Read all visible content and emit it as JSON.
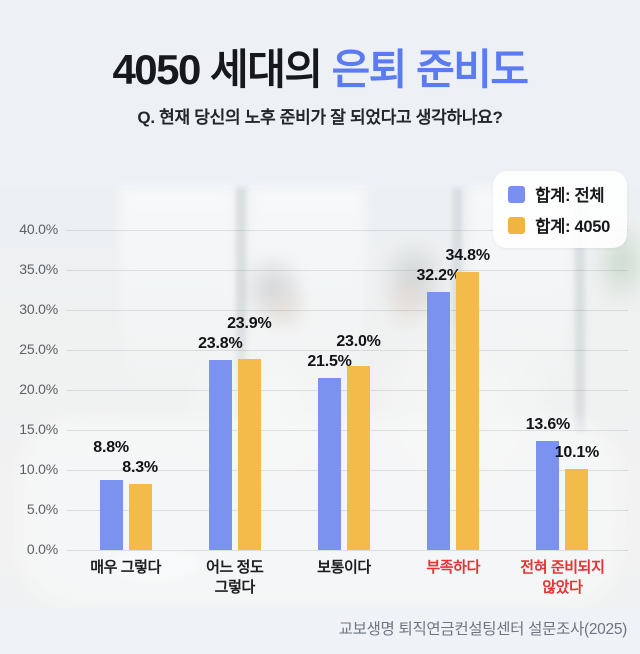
{
  "header": {
    "title_prefix": "4050 세대의 ",
    "title_highlight": "은퇴 준비도",
    "subtitle": "Q. 현재 당신의 노후 준비가 잘 되었다고 생각하나요?"
  },
  "legend": {
    "items": [
      {
        "label": "합계: 전체",
        "color": "#7a90ee"
      },
      {
        "label": "합계: 4050",
        "color": "#f0b442"
      }
    ]
  },
  "footer": {
    "source": "교보생명 퇴직연금컨설팅센터 설문조사(2025)"
  },
  "colors": {
    "title_highlight": "#5b7bf0",
    "bar_blue": "#7b92ef",
    "bar_yellow": "#f3bb49",
    "category_black": "#1c1d20",
    "category_red": "#e23535",
    "background": "#edf1f6",
    "footer_strip": "#eff3f8"
  },
  "chart_data": {
    "type": "bar",
    "title": "4050 세대의 은퇴 준비도",
    "subtitle": "Q. 현재 당신의 노후 준비가 잘 되었다고 생각하나요?",
    "categories": [
      "매우 그렇다",
      "어느 정도\n그렇다",
      "보통이다",
      "부족하다",
      "전혀 준비되지\n않았다"
    ],
    "category_label_colors": [
      "#1c1d20",
      "#1c1d20",
      "#1c1d20",
      "#e23535",
      "#e23535"
    ],
    "series": [
      {
        "name": "합계: 전체",
        "color": "#7b92ef",
        "values": [
          8.8,
          23.8,
          21.5,
          32.2,
          13.6
        ]
      },
      {
        "name": "합계: 4050",
        "color": "#f3bb49",
        "values": [
          8.3,
          23.9,
          23.0,
          34.8,
          10.1
        ]
      }
    ],
    "value_label_format": "{v}%",
    "y_ticks": [
      0,
      5,
      10,
      15,
      20,
      25,
      30,
      35,
      40
    ],
    "y_tick_labels": [
      "0.0%",
      "5.0%",
      "10.0%",
      "15.0%",
      "20.0%",
      "25.0%",
      "30.0%",
      "35.0%",
      "40.0%"
    ],
    "ylim": [
      0,
      40
    ],
    "grid": true,
    "legend_position": "top-right",
    "source": "교보생명 퇴직연금컨설팅센터 설문조사(2025)"
  }
}
